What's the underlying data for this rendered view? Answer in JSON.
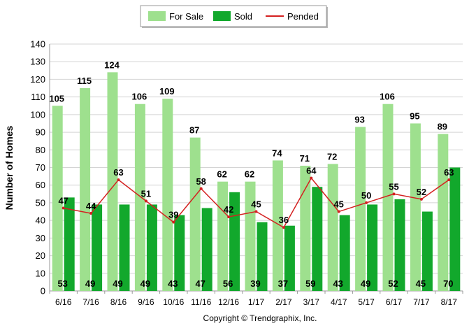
{
  "chart_data": {
    "type": "bar",
    "title": "",
    "xlabel": "",
    "ylabel": "Number of Homes",
    "ylim": [
      0,
      140
    ],
    "yticks": [
      0,
      10,
      20,
      30,
      40,
      50,
      60,
      70,
      80,
      90,
      100,
      110,
      120,
      130,
      140
    ],
    "grid": true,
    "legend_position": "top-center",
    "categories": [
      "6/16",
      "7/16",
      "8/16",
      "9/16",
      "10/16",
      "11/16",
      "12/16",
      "1/17",
      "2/17",
      "3/17",
      "4/17",
      "5/17",
      "6/17",
      "7/17",
      "8/17"
    ],
    "series": [
      {
        "name": "For Sale",
        "type": "bar",
        "color": "#9ee08e",
        "values": [
          105,
          115,
          124,
          106,
          109,
          87,
          62,
          62,
          74,
          71,
          72,
          93,
          106,
          95,
          89
        ]
      },
      {
        "name": "Sold",
        "type": "bar",
        "color": "#12a82c",
        "values": [
          53,
          49,
          49,
          49,
          43,
          47,
          56,
          39,
          37,
          59,
          43,
          49,
          52,
          45,
          70
        ]
      },
      {
        "name": "Pended",
        "type": "line",
        "color": "#d42020",
        "values": [
          47,
          44,
          63,
          51,
          39,
          58,
          42,
          45,
          36,
          64,
          45,
          50,
          55,
          52,
          63
        ]
      }
    ]
  },
  "footer": {
    "copyright": "Copyright © Trendgraphix, Inc."
  }
}
